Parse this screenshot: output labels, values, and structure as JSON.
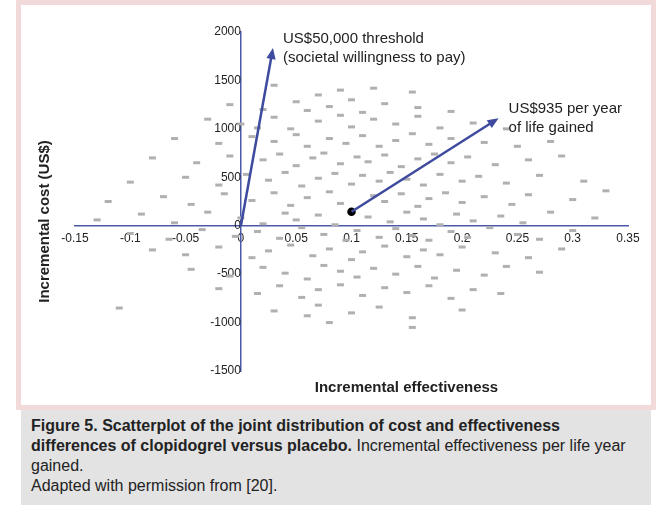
{
  "chart_data": {
    "type": "scatter",
    "xlabel": "Incremental effectiveness",
    "ylabel": "Incremental cost (US$)",
    "xlim": [
      -0.15,
      0.35
    ],
    "xticks": [
      -0.15,
      -0.1,
      -0.05,
      0,
      0.05,
      0.1,
      0.15,
      0.2,
      0.25,
      0.3,
      0.35
    ],
    "ylim": [
      -1500,
      2000
    ],
    "yticks": [
      -1500,
      -1000,
      -500,
      0,
      500,
      1000,
      1500,
      2000
    ],
    "grid": false,
    "series": [
      {
        "color": "#b0b0b0",
        "marker": "dash",
        "x": [
          0.03,
          0.09,
          0.12,
          0.155,
          0.07,
          -0.01,
          0.02,
          0.05,
          0.08,
          0.1,
          0.13,
          0.16,
          0.19,
          0.06,
          0.11,
          -0.03,
          0,
          0.03,
          0.045,
          0.07,
          0.09,
          0.1,
          0.12,
          0.14,
          0.16,
          0.18,
          0.21,
          0.24,
          0.015,
          -0.06,
          -0.02,
          0.01,
          0.03,
          0.05,
          0.06,
          0.08,
          0.095,
          0.11,
          0.125,
          0.14,
          0.155,
          0.17,
          0.19,
          0.22,
          0.25,
          0.28,
          -0.08,
          -0.04,
          -0.01,
          0.02,
          0.035,
          0.05,
          0.065,
          0.075,
          0.09,
          0.105,
          0.115,
          0.13,
          0.145,
          0.16,
          0.175,
          0.19,
          0.205,
          0.23,
          0.26,
          0.29,
          -0.1,
          -0.05,
          -0.02,
          0.005,
          0.025,
          0.04,
          0.055,
          0.07,
          0.085,
          0.1,
          0.11,
          0.125,
          0.135,
          0.15,
          0.165,
          0.18,
          0.2,
          0.215,
          0.24,
          0.27,
          0.31,
          -0.12,
          -0.07,
          -0.045,
          -0.015,
          0.01,
          0.03,
          0.045,
          0.06,
          0.08,
          0.09,
          0.12,
          0.13,
          0.145,
          0.16,
          0.17,
          0.185,
          0.2,
          0.22,
          0.245,
          0.26,
          0.3,
          0.33,
          -0.13,
          -0.09,
          -0.06,
          -0.03,
          0,
          0.02,
          0.04,
          0.05,
          0.07,
          0.085,
          0.115,
          0.135,
          0.15,
          0.165,
          0.18,
          0.195,
          0.21,
          0.235,
          0.255,
          0.28,
          0.32,
          -0.1,
          -0.065,
          -0.035,
          -0.005,
          0.015,
          0.035,
          0.055,
          0.075,
          0.095,
          0.105,
          0.125,
          0.14,
          0.155,
          0.17,
          0.19,
          0.205,
          0.225,
          0.25,
          0.27,
          0.3,
          -0.08,
          -0.05,
          -0.02,
          0.01,
          0.025,
          0.045,
          0.065,
          0.08,
          0.1,
          0.11,
          0.13,
          0.15,
          0.165,
          0.18,
          0.2,
          0.23,
          0.26,
          0.29,
          -0.045,
          -0.01,
          0.02,
          0.04,
          0.06,
          0.075,
          0.09,
          0.105,
          0.12,
          0.14,
          0.16,
          0.175,
          0.195,
          0.22,
          0.24,
          0.27,
          -0.02,
          0.015,
          0.035,
          0.055,
          0.07,
          0.09,
          0.11,
          0.13,
          0.15,
          0.17,
          0.19,
          0.21,
          0.235,
          -0.11,
          0.03,
          0.07,
          0.1,
          0.125,
          0.155,
          0.2,
          0.06,
          0.155,
          0.08
        ],
        "values": [
          1450,
          1400,
          1420,
          1380,
          1350,
          1250,
          1200,
          1280,
          1230,
          1300,
          1260,
          1220,
          1180,
          1190,
          1170,
          1100,
          1050,
          1120,
          1000,
          1080,
          1140,
          1020,
          1100,
          1050,
          1130,
          1010,
          1060,
          1000,
          1010,
          900,
          850,
          920,
          870,
          940,
          820,
          900,
          850,
          930,
          820,
          880,
          950,
          840,
          900,
          860,
          820,
          870,
          700,
          650,
          720,
          680,
          740,
          620,
          700,
          750,
          640,
          710,
          660,
          730,
          610,
          690,
          740,
          650,
          710,
          630,
          680,
          720,
          450,
          500,
          420,
          530,
          470,
          550,
          410,
          490,
          540,
          430,
          520,
          460,
          550,
          480,
          420,
          530,
          460,
          510,
          440,
          520,
          460,
          250,
          300,
          220,
          330,
          260,
          340,
          210,
          290,
          350,
          230,
          310,
          250,
          330,
          200,
          280,
          340,
          240,
          300,
          220,
          320,
          270,
          360,
          60,
          120,
          30,
          140,
          80,
          20,
          130,
          60,
          110,
          10,
          90,
          40,
          140,
          70,
          10,
          120,
          50,
          100,
          30,
          140,
          80,
          -80,
          -140,
          -40,
          -110,
          -60,
          -130,
          -20,
          -90,
          -150,
          -50,
          -120,
          -30,
          -100,
          -150,
          -60,
          -120,
          -20,
          -90,
          -140,
          -50,
          -250,
          -300,
          -220,
          -330,
          -260,
          -200,
          -310,
          -240,
          -350,
          -270,
          -210,
          -320,
          -250,
          -300,
          -220,
          -280,
          -330,
          -240,
          -450,
          -520,
          -430,
          -490,
          -550,
          -410,
          -470,
          -530,
          -440,
          -500,
          -420,
          -540,
          -460,
          -510,
          -420,
          -480,
          -650,
          -700,
          -620,
          -740,
          -660,
          -610,
          -720,
          -640,
          -690,
          -620,
          -750,
          -660,
          -700,
          -850,
          -880,
          -820,
          -900,
          -840,
          -950,
          -870,
          -930,
          -1050,
          -1000
        ]
      },
      {
        "color": "#000000",
        "marker": "circle",
        "x": [
          0.1
        ],
        "values": [
          144
        ]
      }
    ],
    "annotations": [
      {
        "text": [
          "US$50,000 threshold",
          "(societal willingness to pay)"
        ],
        "color": "#3d4a9e",
        "arrow": {
          "x": [
            0,
            0.029
          ],
          "y": [
            0,
            1835
          ]
        }
      },
      {
        "text": [
          "US$935 per year",
          "of life gained"
        ],
        "color": "#3d4a9e",
        "arrow": {
          "x": [
            0.1,
            0.233
          ],
          "y": [
            144,
            1110
          ]
        }
      }
    ]
  },
  "caption": {
    "title": "Figure 5. Scatterplot of the joint distribution of cost and effectiveness differences of clopidogrel versus placebo.",
    "text": "Incremental effectiveness per life year gained.",
    "credit": "Adapted with permission from [20]."
  }
}
